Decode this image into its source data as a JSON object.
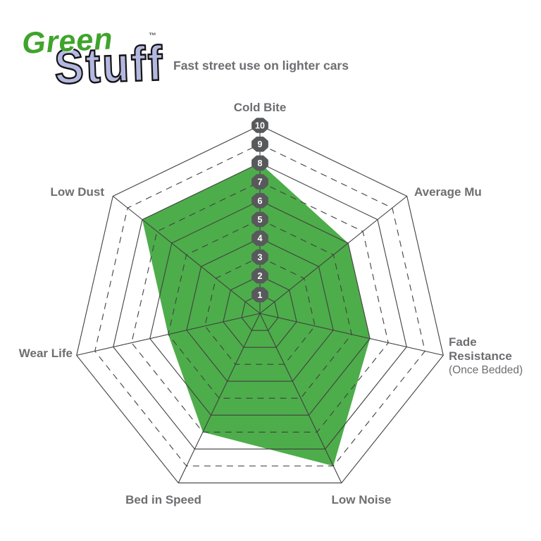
{
  "logo": {
    "word1": "Green",
    "word2": "Stuff",
    "trademark": "™",
    "word1_color": "#3FA42C",
    "word2_color": "#B4B8E0"
  },
  "subtitle": "Fast street use on lighter cars",
  "chart_data": {
    "type": "radar",
    "title": "Fast street use on lighter cars",
    "scale": {
      "min": 1,
      "max": 10,
      "ticks": [
        1,
        2,
        3,
        4,
        5,
        6,
        7,
        8,
        9,
        10
      ]
    },
    "rings_solid": [
      1,
      2,
      4,
      6,
      8,
      10
    ],
    "rings_dashed": [
      3,
      5,
      7,
      9
    ],
    "grid": "heptagonal-web",
    "legend_position": "none",
    "axes": [
      {
        "label": "Cold Bite",
        "value": 8
      },
      {
        "label": "Average Mu",
        "value": 6
      },
      {
        "label": "Fade Resistance",
        "sublabel": "(Once Bedded)",
        "value": 6
      },
      {
        "label": "Low Noise",
        "value": 9
      },
      {
        "label": "Bed in Speed",
        "value": 7
      },
      {
        "label": "Wear Life",
        "value": 5
      },
      {
        "label": "Low Dust",
        "value": 8
      }
    ],
    "colors": {
      "fill": "#4DAD4A",
      "grid": "#414042",
      "badge": "#58595B",
      "badge_text": "#FFFFFF",
      "label": "#6D6E71"
    }
  }
}
